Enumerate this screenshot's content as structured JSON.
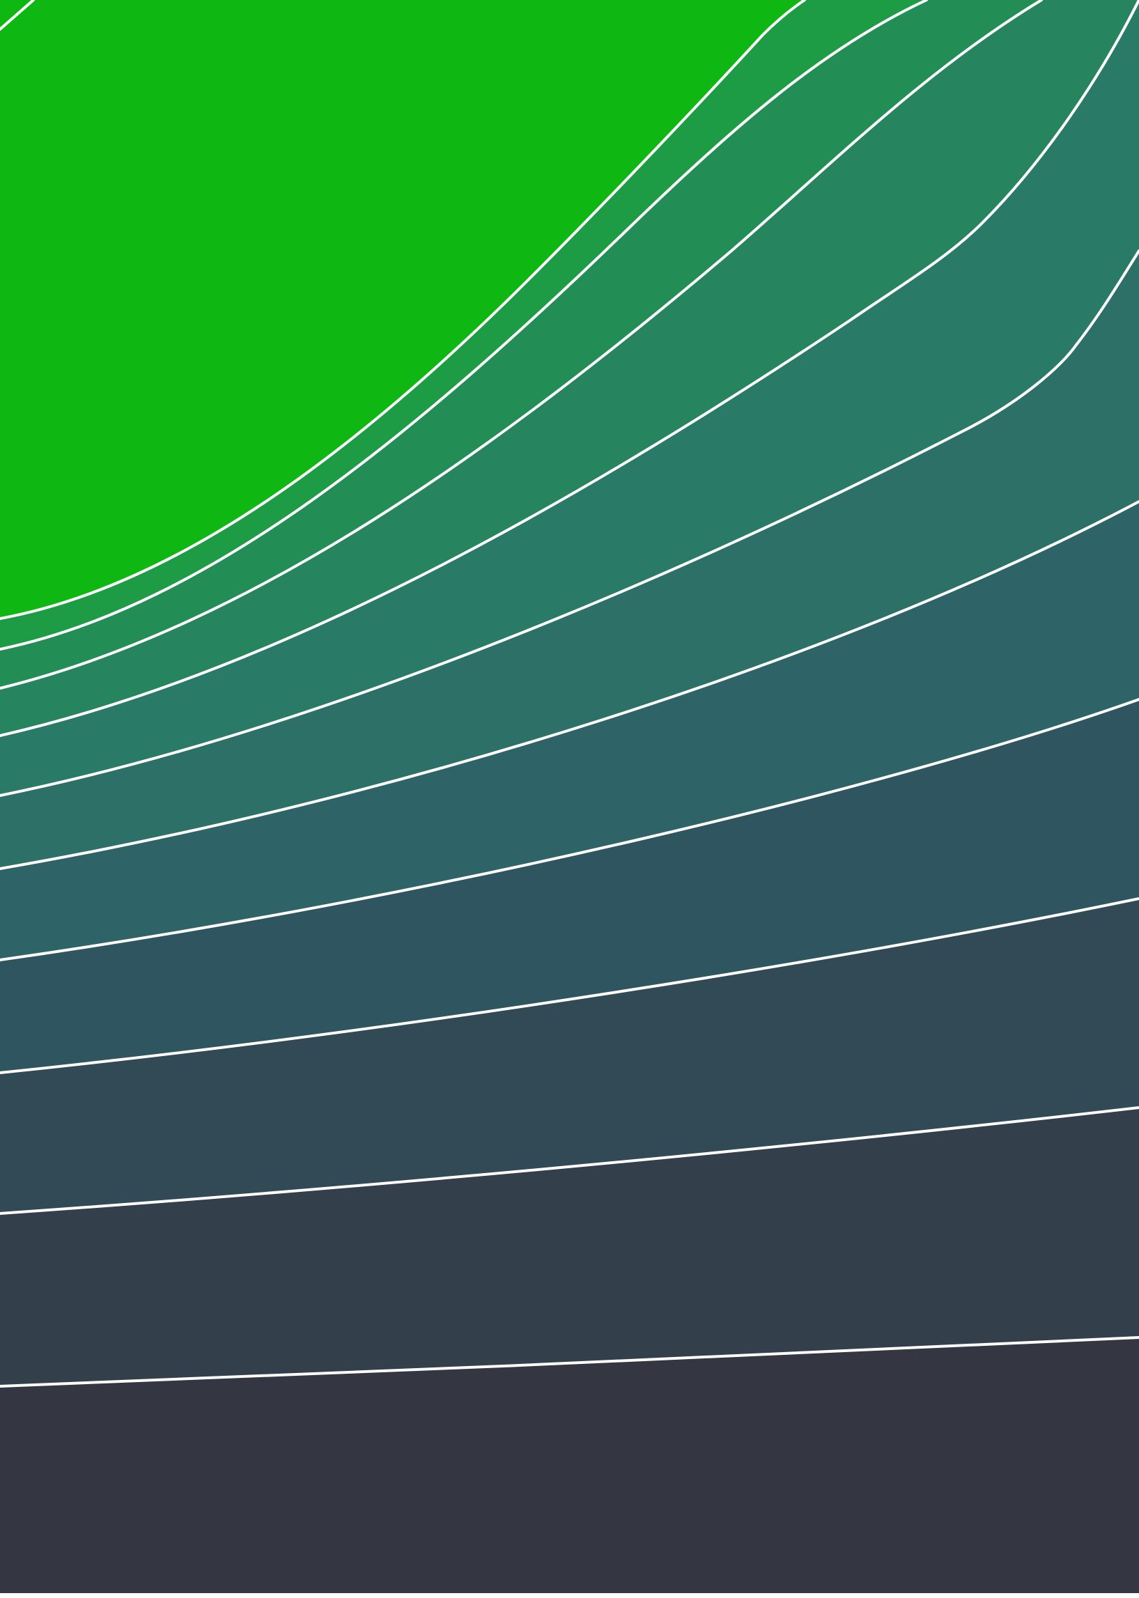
{
  "artwork": {
    "description_hidden": "",
    "band_colors": [
      "#0fb712",
      "#19a62f",
      "#1e9c45",
      "#228e55",
      "#26845f",
      "#2a7a68",
      "#2d7068",
      "#2e6468",
      "#2f5660",
      "#314a56",
      "#33404b",
      "#343b45",
      "#343741"
    ],
    "line_color": "#ffffff",
    "page_edge_color": "#ffffff"
  }
}
